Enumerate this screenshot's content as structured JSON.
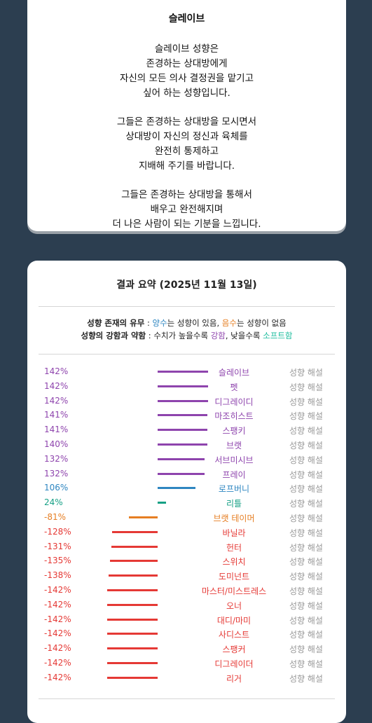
{
  "type_card": {
    "title": "슬레이브",
    "paragraphs": [
      [
        "슬레이브 성향은",
        "존경하는 상대방에게",
        "자신의 모든 의사 결정권을 맡기고",
        "싶어 하는 성향입니다."
      ],
      [
        "그들은 존경하는 상대방을 모시면서",
        "상대방이 자신의 정신과 육체를",
        "완전히 통제하고",
        "지배해 주기를 바랍니다."
      ],
      [
        "그들은 존경하는 상대방을 통해서",
        "배우고 완전해지며",
        "더 나은 사람이 되는 기분을 느낍니다."
      ]
    ]
  },
  "summary": {
    "title": "결과 요약 (2025년 11월 13일)",
    "legend": {
      "line1": {
        "label": "성향 존재의 유무",
        "sep": " : ",
        "positive": "양수",
        "mid1": "는 성향이 있음, ",
        "negative": "음수",
        "mid2": "는 성향이 없음"
      },
      "line2": {
        "label": "성향의 강함과 약함",
        "sep": " : 수치가 높을수록 ",
        "strong": "강함",
        "mid": ", 낮을수록 ",
        "soft": "소프트함"
      }
    },
    "interp_label": "성향 해설",
    "colors": {
      "purple": "#8e44ad",
      "blue": "#2e86c1",
      "teal": "#16a085",
      "orange": "#e67e22",
      "red": "#e53935"
    },
    "rows": [
      {
        "pct": "142%",
        "value": 142,
        "name": "슬레이브",
        "color": "purple"
      },
      {
        "pct": "142%",
        "value": 142,
        "name": "펫",
        "color": "purple"
      },
      {
        "pct": "142%",
        "value": 142,
        "name": "디그레이디",
        "color": "purple"
      },
      {
        "pct": "141%",
        "value": 141,
        "name": "마조히스트",
        "color": "purple"
      },
      {
        "pct": "141%",
        "value": 141,
        "name": "스팽키",
        "color": "purple"
      },
      {
        "pct": "140%",
        "value": 140,
        "name": "브랫",
        "color": "purple"
      },
      {
        "pct": "132%",
        "value": 132,
        "name": "서브미시브",
        "color": "purple"
      },
      {
        "pct": "132%",
        "value": 132,
        "name": "프레이",
        "color": "purple"
      },
      {
        "pct": "106%",
        "value": 106,
        "name": "로프버니",
        "color": "blue"
      },
      {
        "pct": "24%",
        "value": 24,
        "name": "리틀",
        "color": "teal"
      },
      {
        "pct": "-81%",
        "value": -81,
        "name": "브랫 테이머",
        "color": "orange"
      },
      {
        "pct": "-128%",
        "value": -128,
        "name": "바닐라",
        "color": "red"
      },
      {
        "pct": "-131%",
        "value": -131,
        "name": "헌터",
        "color": "red"
      },
      {
        "pct": "-135%",
        "value": -135,
        "name": "스위치",
        "color": "red"
      },
      {
        "pct": "-138%",
        "value": -138,
        "name": "도미넌트",
        "color": "red"
      },
      {
        "pct": "-142%",
        "value": -142,
        "name": "마스터/미스트레스",
        "color": "red"
      },
      {
        "pct": "-142%",
        "value": -142,
        "name": "오너",
        "color": "red"
      },
      {
        "pct": "-142%",
        "value": -142,
        "name": "대디/마미",
        "color": "red"
      },
      {
        "pct": "-142%",
        "value": -142,
        "name": "사디스트",
        "color": "red"
      },
      {
        "pct": "-142%",
        "value": -142,
        "name": "스팽커",
        "color": "red"
      },
      {
        "pct": "-142%",
        "value": -142,
        "name": "디그레이더",
        "color": "red"
      },
      {
        "pct": "-142%",
        "value": -142,
        "name": "리거",
        "color": "red"
      }
    ]
  }
}
